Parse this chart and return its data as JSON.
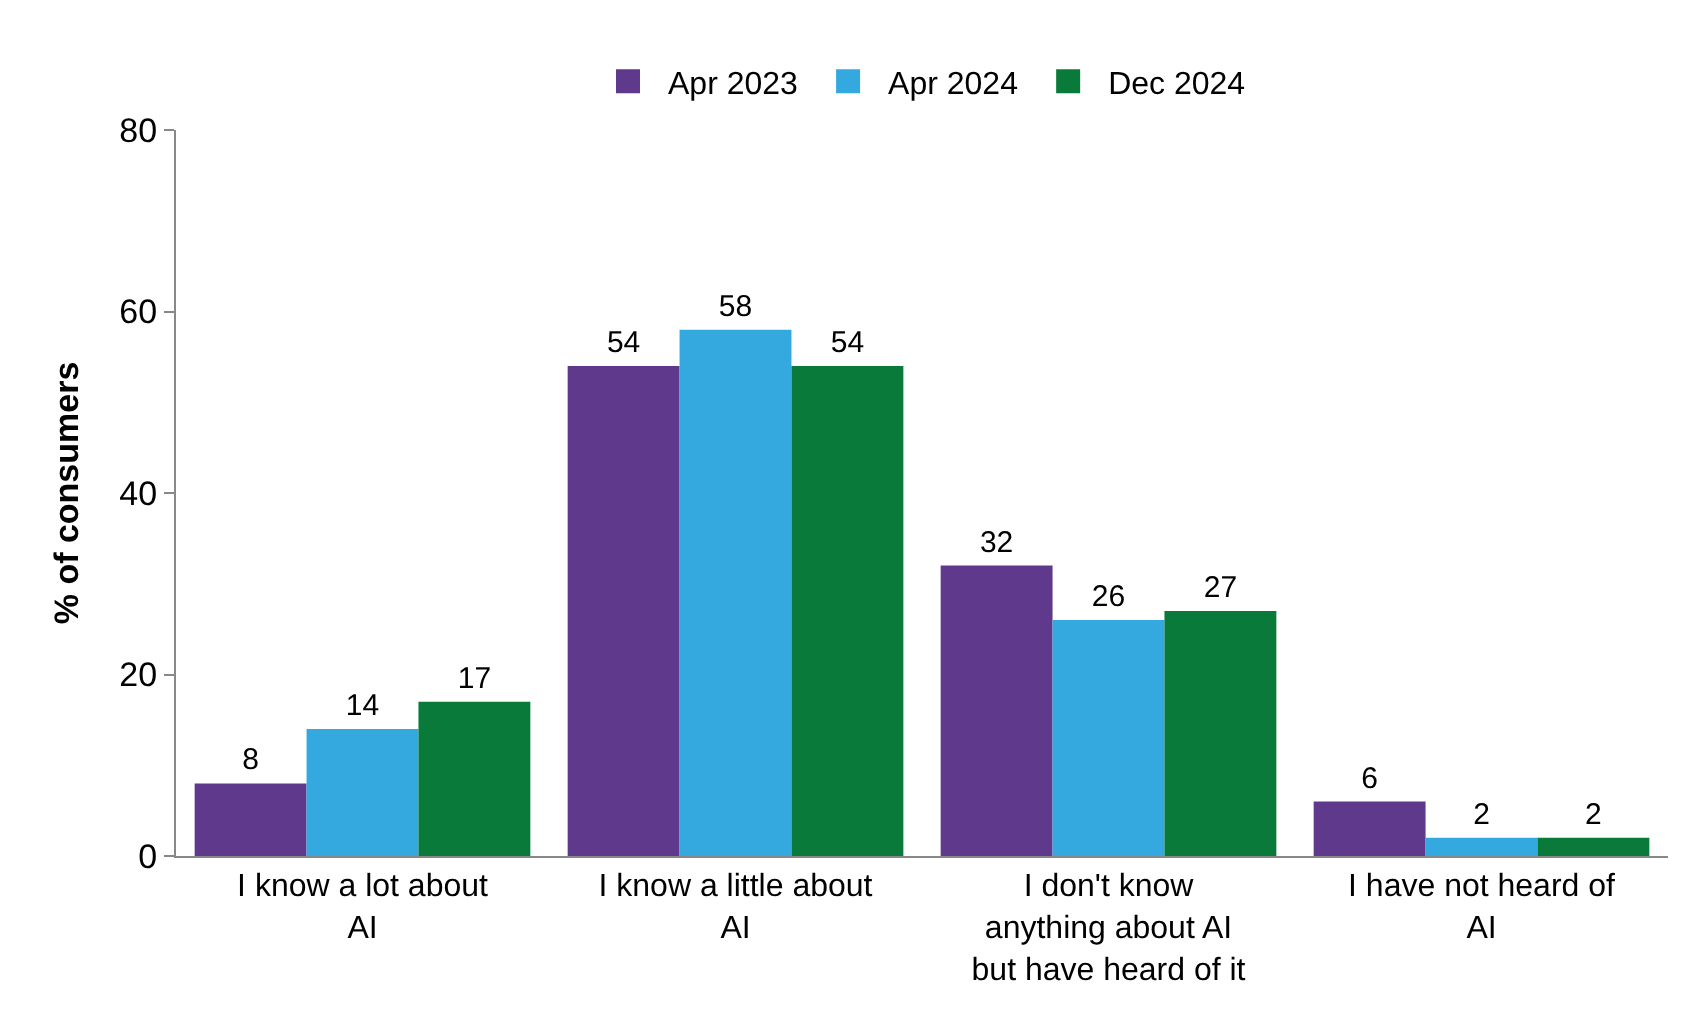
{
  "chart_data": {
    "type": "bar",
    "ylabel": "% of consumers",
    "categories": [
      "I know a lot about\nAI",
      "I know a little about\nAI",
      "I don't know\nanything about AI\nbut have heard of it",
      "I have not heard of\nAI"
    ],
    "series": [
      {
        "name": "Apr 2023",
        "color": "#5f3a8c",
        "values": [
          8,
          54,
          32,
          6
        ]
      },
      {
        "name": "Apr 2024",
        "color": "#34a9e0",
        "values": [
          14,
          58,
          26,
          2
        ]
      },
      {
        "name": "Dec 2024",
        "color": "#0a7a3b",
        "values": [
          17,
          54,
          27,
          2
        ]
      }
    ],
    "ylim": [
      0,
      80
    ],
    "yticks": [
      0,
      20,
      40,
      60,
      80
    ],
    "grid": false,
    "legend": "top",
    "data_labels": true
  }
}
